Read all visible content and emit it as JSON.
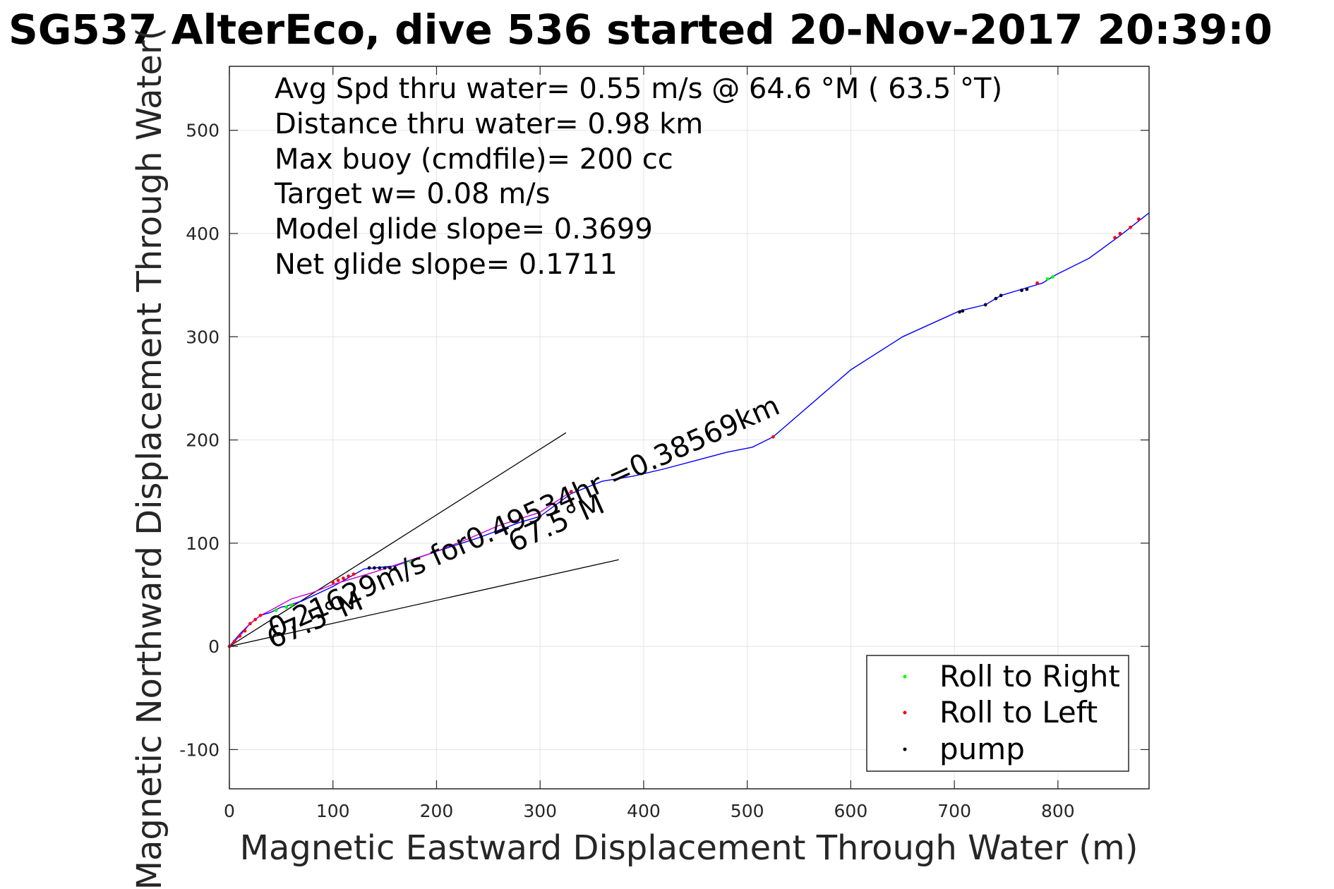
{
  "chart_data": {
    "type": "line",
    "title": "SG537 AlterEco, dive 536 started 20-Nov-2017 20:39:0",
    "xlabel": "Magnetic Eastward Displacement Through Water (m)",
    "ylabel": "Magnetic Northward Displacement Through Water(",
    "xlim": [
      0,
      888
    ],
    "ylim": [
      -138,
      562
    ],
    "xticks": [
      0,
      100,
      200,
      300,
      400,
      500,
      600,
      700,
      800
    ],
    "yticks": [
      -100,
      0,
      100,
      200,
      300,
      400,
      500
    ],
    "grid": true,
    "stats": [
      "Avg Spd thru water=  0.55 m/s @  64.6 °M ( 63.5 °T)",
      "Distance thru water=  0.98 km",
      "Max buoy (cmdfile)= 200 cc",
      "Target w= 0.08 m/s",
      "Model glide slope= 0.3699",
      "Net glide slope= 0.1711"
    ],
    "annotations": {
      "speed_text": "0.21629m/s for0.49534hr =0.38569km",
      "heading_1": "67.5°M",
      "heading_2": "67.5°M"
    },
    "reference_lines": [
      {
        "name": "upper-bound",
        "x": [
          0,
          325
        ],
        "y": [
          0,
          207
        ]
      },
      {
        "name": "lower-bound",
        "x": [
          0,
          376
        ],
        "y": [
          0,
          84
        ]
      }
    ],
    "series": [
      {
        "name": "track",
        "color": "#0000ff",
        "x": [
          0,
          5,
          10,
          20,
          30,
          40,
          50,
          55,
          70,
          100,
          130,
          160,
          200,
          240,
          280,
          300,
          330,
          360,
          390,
          420,
          450,
          480,
          505,
          525,
          600,
          650,
          705,
          730,
          745,
          765,
          785,
          798,
          830,
          860,
          888
        ],
        "y": [
          0,
          6,
          12,
          22,
          30,
          33,
          38,
          39,
          44,
          58,
          75,
          78,
          92,
          105,
          120,
          126,
          148,
          160,
          165,
          172,
          180,
          188,
          193,
          203,
          268,
          300,
          325,
          331,
          340,
          346,
          352,
          360,
          376,
          398,
          420
        ]
      },
      {
        "name": "model",
        "color": "#cc00cc",
        "x": [
          0,
          10,
          20,
          30,
          40,
          60,
          80,
          100,
          120,
          140,
          170,
          200,
          230,
          260,
          300,
          330
        ],
        "y": [
          0,
          10,
          22,
          30,
          35,
          46,
          52,
          60,
          66,
          72,
          82,
          92,
          104,
          117,
          130,
          150
        ]
      },
      {
        "name": "Roll to Right",
        "color": "#00ff00",
        "x": [
          45,
          55,
          60,
          170,
          175,
          790,
          795
        ],
        "y": [
          35,
          38,
          40,
          80,
          82,
          356,
          358
        ]
      },
      {
        "name": "Roll to Left",
        "color": "#ff0000",
        "x": [
          0,
          5,
          10,
          15,
          20,
          25,
          30,
          100,
          105,
          110,
          115,
          120,
          300,
          330,
          525,
          765,
          780,
          855,
          860,
          870,
          878
        ],
        "y": [
          0,
          5,
          10,
          15,
          22,
          26,
          30,
          62,
          64,
          66,
          68,
          70,
          126,
          150,
          203,
          345,
          352,
          396,
          400,
          406,
          414
        ]
      },
      {
        "name": "pump",
        "color": "#000033",
        "x": [
          135,
          140,
          145,
          150,
          155,
          160,
          705,
          708,
          730,
          740,
          745,
          765,
          770
        ],
        "y": [
          76,
          76,
          76,
          76,
          76,
          76,
          324,
          325,
          331,
          337,
          340,
          345,
          346
        ]
      }
    ],
    "legend": {
      "position": "bottom-right",
      "entries": [
        {
          "label": "Roll to Right",
          "color": "#00ff00"
        },
        {
          "label": "Roll to Left",
          "color": "#ff0000"
        },
        {
          "label": "pump",
          "color": "#000000"
        }
      ]
    }
  }
}
